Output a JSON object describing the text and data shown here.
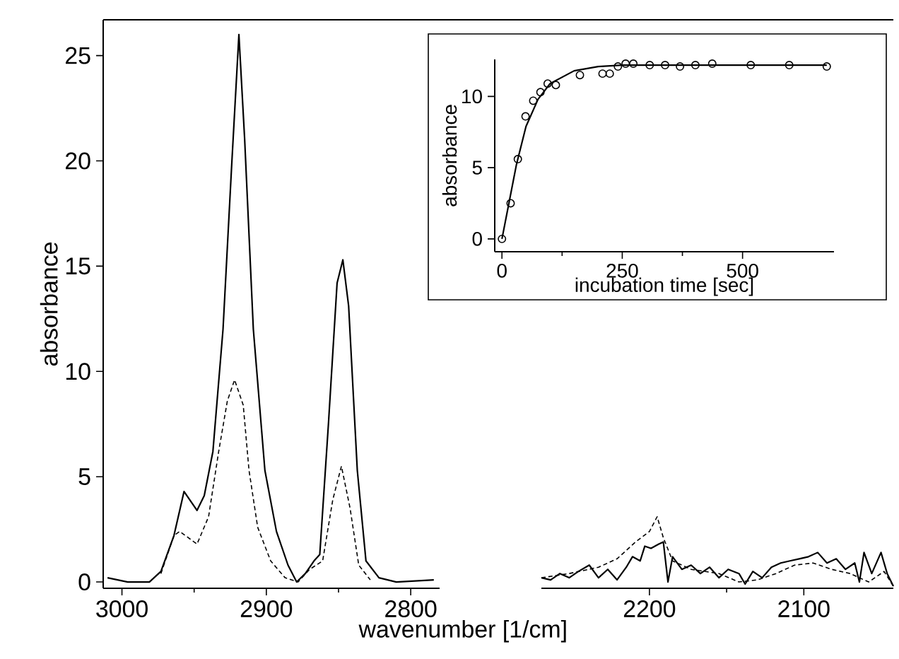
{
  "chart_data": [
    {
      "type": "line",
      "xlabel": "wavenumber [1/cm]",
      "ylabel": "absorbance",
      "xlim": [
        3013,
        2780
      ],
      "xticks": [
        3000,
        2900,
        2800
      ],
      "ylim": [
        -0.3,
        26.7
      ],
      "yticks": [
        0,
        5,
        10,
        15,
        20,
        25
      ],
      "series": [
        {
          "color": "#000000",
          "line_style": "solid",
          "x": [
            3010,
            2996,
            2981,
            2973,
            2964,
            2957,
            2948,
            2943,
            2937,
            2930,
            2924,
            2919,
            2915,
            2909,
            2901,
            2893,
            2885,
            2879,
            2873,
            2867,
            2863,
            2857,
            2851,
            2847,
            2843,
            2837,
            2831,
            2822,
            2810,
            2784
          ],
          "values": [
            0.2,
            0,
            0,
            0.5,
            2.2,
            4.3,
            3.4,
            4.1,
            6.2,
            12,
            19.8,
            26,
            21,
            12,
            5.3,
            2.4,
            0.8,
            0,
            0.4,
            1.0,
            1.3,
            7.5,
            14.2,
            15.3,
            13.1,
            5.3,
            1.0,
            0.2,
            0,
            0.1
          ]
        },
        {
          "color": "#000000",
          "line_style": "dashed",
          "x": [
            2973,
            2964,
            2960,
            2948,
            2940,
            2933,
            2927,
            2922,
            2916,
            2912,
            2906,
            2897,
            2887,
            2878,
            2870,
            2861,
            2854,
            2848,
            2842,
            2836,
            2828
          ],
          "values": [
            0.4,
            2.2,
            2.4,
            1.8,
            3.1,
            6.2,
            8.6,
            9.6,
            8.4,
            5.3,
            2.6,
            1.0,
            0.2,
            0,
            0.6,
            1.0,
            3.9,
            5.5,
            3.5,
            0.8,
            0.1
          ]
        }
      ]
    },
    {
      "type": "line",
      "xlim": [
        2270,
        2042
      ],
      "xticks": [
        2200,
        2100
      ],
      "ylim": [
        -0.3,
        26.7
      ],
      "tick_labels": "x",
      "series": [
        {
          "color": "#000000",
          "line_style": "solid",
          "x": [
            2270,
            2264,
            2258,
            2252,
            2246,
            2239,
            2233,
            2227,
            2221,
            2215,
            2211,
            2206,
            2203,
            2199,
            2194,
            2191,
            2188,
            2185,
            2179,
            2173,
            2167,
            2161,
            2155,
            2149,
            2142,
            2138,
            2133,
            2127,
            2121,
            2115,
            2109,
            2103,
            2097,
            2091,
            2085,
            2079,
            2073,
            2067,
            2064,
            2061,
            2056,
            2050,
            2046,
            2042
          ],
          "values": [
            0.2,
            0.1,
            0.4,
            0.2,
            0.5,
            0.8,
            0.2,
            0.6,
            0.1,
            0.7,
            1.2,
            1.0,
            1.7,
            1.6,
            1.8,
            1.9,
            0.0,
            1.2,
            0.6,
            0.8,
            0.4,
            0.7,
            0.2,
            0.6,
            0.4,
            -0.1,
            0.5,
            0.2,
            0.7,
            0.9,
            1.0,
            1.1,
            1.2,
            1.4,
            0.9,
            1.1,
            0.6,
            0.9,
            0.0,
            1.4,
            0.4,
            1.4,
            0.4,
            -0.2
          ]
        },
        {
          "color": "#000000",
          "line_style": "dashed",
          "x": [
            2270,
            2252,
            2233,
            2221,
            2209,
            2200,
            2195,
            2191,
            2185,
            2173,
            2155,
            2142,
            2130,
            2118,
            2106,
            2094,
            2082,
            2070,
            2058,
            2048,
            2042
          ],
          "values": [
            0.2,
            0.4,
            0.7,
            1.1,
            1.9,
            2.4,
            3.1,
            2.1,
            1.0,
            0.6,
            0.4,
            0.0,
            0.1,
            0.4,
            0.8,
            0.9,
            0.6,
            0.4,
            0.0,
            0.5,
            -0.2
          ]
        }
      ]
    },
    {
      "type": "scatter",
      "xlabel": "incubation time [sec]",
      "ylabel": "absorbance",
      "xlim": [
        -15,
        690
      ],
      "xticks": [
        0,
        250,
        500
      ],
      "ylim": [
        -0.9,
        12.6
      ],
      "yticks": [
        0,
        5,
        10
      ],
      "series": [
        {
          "color": "#000000",
          "marker": "circle",
          "x": [
            0,
            18,
            33,
            49,
            65,
            80,
            95,
            112,
            162,
            209,
            224,
            241,
            257,
            273,
            307,
            339,
            370,
            402,
            437,
            517,
            597,
            675
          ],
          "values": [
            0,
            2.5,
            5.6,
            8.6,
            9.7,
            10.3,
            10.9,
            10.8,
            11.5,
            11.6,
            11.6,
            12.1,
            12.3,
            12.3,
            12.2,
            12.2,
            12.1,
            12.2,
            12.3,
            12.2,
            12.2,
            12.1
          ]
        },
        {
          "type": "line",
          "color": "#000000",
          "line_style": "solid",
          "x": [
            0,
            15,
            30,
            50,
            75,
            100,
            150,
            200,
            250,
            675
          ],
          "values": [
            0,
            2.6,
            5.2,
            7.9,
            9.8,
            10.9,
            11.8,
            12.1,
            12.2,
            12.2
          ]
        }
      ]
    }
  ]
}
